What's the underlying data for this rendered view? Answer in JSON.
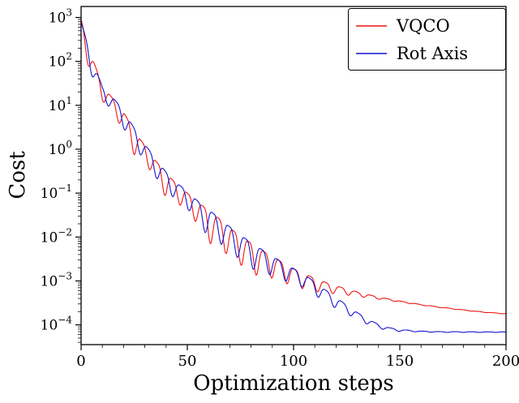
{
  "figure": {
    "background": "#ffffff"
  },
  "chart_data": {
    "type": "line",
    "title": "",
    "xlabel": "Optimization steps",
    "ylabel": "Cost",
    "x_ticks": [
      0,
      50,
      100,
      150,
      200
    ],
    "x_minor_tick_step": 10,
    "y_tick_exponents": [
      3,
      2,
      1,
      0,
      -1,
      -2,
      -3,
      -4
    ],
    "y_scale": "log",
    "xlim": [
      0,
      200
    ],
    "ylog_lim": [
      -4.45,
      3.25
    ],
    "grid": false,
    "legend": {
      "position": "upper right"
    },
    "axis_color": "#000000",
    "series": [
      {
        "name": "VQCO",
        "color": "#f01515",
        "osc_period": 7.2,
        "osc_phase": 1.5,
        "envelope_points": [
          [
            0,
            900
          ],
          [
            5,
            130
          ],
          [
            10,
            28
          ],
          [
            15,
            14
          ],
          [
            20,
            7
          ],
          [
            25,
            2.6
          ],
          [
            30,
            1.2
          ],
          [
            35,
            0.55
          ],
          [
            40,
            0.28
          ],
          [
            45,
            0.16
          ],
          [
            50,
            0.1
          ],
          [
            55,
            0.062
          ],
          [
            60,
            0.04
          ],
          [
            65,
            0.026
          ],
          [
            70,
            0.016
          ],
          [
            75,
            0.0105
          ],
          [
            80,
            0.0072
          ],
          [
            85,
            0.005
          ],
          [
            90,
            0.0036
          ],
          [
            95,
            0.0026
          ],
          [
            100,
            0.0019
          ],
          [
            105,
            0.00145
          ],
          [
            110,
            0.00115
          ],
          [
            115,
            0.00093
          ],
          [
            120,
            0.00077
          ],
          [
            130,
            0.00056
          ],
          [
            140,
            0.00043
          ],
          [
            150,
            0.00035
          ],
          [
            160,
            0.00029
          ],
          [
            170,
            0.00025
          ],
          [
            180,
            0.00022
          ],
          [
            190,
            0.000195
          ],
          [
            200,
            0.00018
          ]
        ],
        "osc_depth_points": [
          [
            0,
            0.55
          ],
          [
            5,
            0.45
          ],
          [
            10,
            0.35
          ],
          [
            15,
            0.3
          ],
          [
            20,
            0.45
          ],
          [
            25,
            0.55
          ],
          [
            30,
            0.35
          ],
          [
            35,
            0.45
          ],
          [
            40,
            0.55
          ],
          [
            45,
            0.4
          ],
          [
            50,
            0.45
          ],
          [
            55,
            0.5
          ],
          [
            60,
            0.75
          ],
          [
            65,
            0.6
          ],
          [
            70,
            0.7
          ],
          [
            75,
            0.65
          ],
          [
            80,
            0.75
          ],
          [
            85,
            0.55
          ],
          [
            90,
            0.5
          ],
          [
            95,
            0.45
          ],
          [
            100,
            0.4
          ],
          [
            105,
            0.35
          ],
          [
            110,
            0.3
          ],
          [
            115,
            0.25
          ],
          [
            120,
            0.18
          ],
          [
            130,
            0.1
          ],
          [
            140,
            0.05
          ],
          [
            150,
            0.025
          ],
          [
            160,
            0.015
          ],
          [
            200,
            0.008
          ]
        ]
      },
      {
        "name": "Rot Axis",
        "color": "#1515d0",
        "osc_period": 7.6,
        "osc_phase": 3.2,
        "envelope_points": [
          [
            0,
            800
          ],
          [
            5,
            120
          ],
          [
            10,
            26
          ],
          [
            15,
            15
          ],
          [
            20,
            7.5
          ],
          [
            25,
            3
          ],
          [
            30,
            1.3
          ],
          [
            35,
            0.6
          ],
          [
            40,
            0.3
          ],
          [
            45,
            0.17
          ],
          [
            50,
            0.11
          ],
          [
            55,
            0.065
          ],
          [
            60,
            0.042
          ],
          [
            65,
            0.027
          ],
          [
            70,
            0.017
          ],
          [
            75,
            0.011
          ],
          [
            80,
            0.0075
          ],
          [
            85,
            0.0052
          ],
          [
            90,
            0.0037
          ],
          [
            95,
            0.0026
          ],
          [
            100,
            0.0019
          ],
          [
            105,
            0.0014
          ],
          [
            110,
            0.00095
          ],
          [
            115,
            0.00062
          ],
          [
            120,
            0.00042
          ],
          [
            125,
            0.00028
          ],
          [
            130,
            0.00019
          ],
          [
            135,
            0.000135
          ],
          [
            140,
            0.000102
          ],
          [
            145,
            8.6e-05
          ],
          [
            150,
            7.8e-05
          ],
          [
            160,
            7.2e-05
          ],
          [
            170,
            7e-05
          ],
          [
            200,
            6.9e-05
          ]
        ],
        "osc_depth_points": [
          [
            0,
            0.5
          ],
          [
            5,
            0.4
          ],
          [
            10,
            0.3
          ],
          [
            15,
            0.3
          ],
          [
            20,
            0.4
          ],
          [
            25,
            0.45
          ],
          [
            30,
            0.35
          ],
          [
            35,
            0.4
          ],
          [
            40,
            0.5
          ],
          [
            45,
            0.35
          ],
          [
            50,
            0.4
          ],
          [
            55,
            0.45
          ],
          [
            60,
            0.65
          ],
          [
            65,
            0.55
          ],
          [
            70,
            0.6
          ],
          [
            75,
            0.55
          ],
          [
            80,
            0.6
          ],
          [
            85,
            0.5
          ],
          [
            90,
            0.45
          ],
          [
            95,
            0.4
          ],
          [
            100,
            0.35
          ],
          [
            105,
            0.3
          ],
          [
            110,
            0.3
          ],
          [
            115,
            0.28
          ],
          [
            120,
            0.25
          ],
          [
            125,
            0.2
          ],
          [
            130,
            0.15
          ],
          [
            135,
            0.12
          ],
          [
            140,
            0.09
          ],
          [
            145,
            0.06
          ],
          [
            150,
            0.04
          ],
          [
            160,
            0.02
          ],
          [
            200,
            0.01
          ]
        ]
      }
    ]
  }
}
